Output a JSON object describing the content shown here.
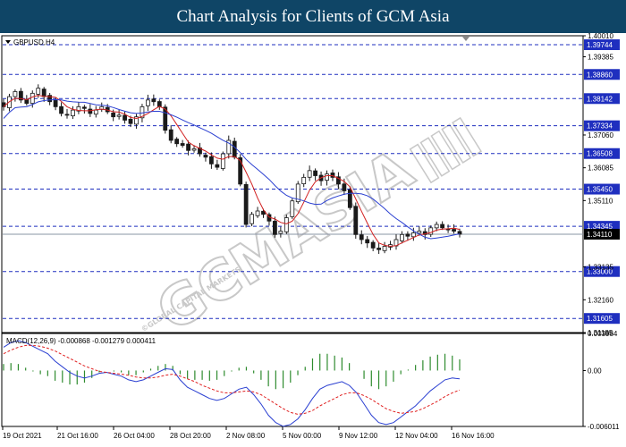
{
  "header": {
    "title": "Chart Analysis for Clients of GCM Asia"
  },
  "colors": {
    "title_bg": "#0f4566",
    "level_line": "#1f2fbf",
    "level_tag": "#1f2fbf",
    "ma_fast": "#d11f1f",
    "ma_slow": "#2a3fd1",
    "macd_hist": "#2e8b2e",
    "macd_main": "#2a3fd1",
    "macd_signal": "#e02020",
    "candle": "#1a1a1a",
    "watermark": "#c8c8c8"
  },
  "watermark": {
    "main": "GCMASIA",
    "sub": "©GLOBAL CAPITAL MARKETS",
    "logo": "GCMASIA LOGO"
  },
  "chart_data": {
    "type": "candlestick",
    "symbol": "GBPUSD,H4",
    "price_range": [
      1.31185,
      1.4001
    ],
    "price_ticks": [
      "1.40010",
      "1.39385",
      "1.37060",
      "1.36085",
      "1.35110",
      "1.33135",
      "1.32160",
      "1.31185"
    ],
    "current_price": "1.34110",
    "levels": [
      "1.39744",
      "1.38860",
      "1.38142",
      "1.37334",
      "1.36508",
      "1.35450",
      "1.34345",
      "1.33000",
      "1.31605"
    ],
    "x_labels": [
      "19 Oct 2021",
      "21 Oct 16:00",
      "26 Oct 04:00",
      "28 Oct 20:00",
      "2 Nov 08:00",
      "5 Nov 00:00",
      "9 Nov 12:00",
      "12 Nov 04:00",
      "16 Nov 16:00"
    ],
    "closes": [
      1.379,
      1.382,
      1.3835,
      1.381,
      1.38,
      1.383,
      1.3845,
      1.382,
      1.3805,
      1.379,
      1.377,
      1.3765,
      1.378,
      1.379,
      1.3785,
      1.377,
      1.378,
      1.379,
      1.3775,
      1.376,
      1.3765,
      1.375,
      1.374,
      1.376,
      1.379,
      1.381,
      1.3805,
      1.379,
      1.372,
      1.369,
      1.368,
      1.3675,
      1.366,
      1.3665,
      1.365,
      1.364,
      1.362,
      1.361,
      1.365,
      1.369,
      1.364,
      1.356,
      1.344,
      1.347,
      1.348,
      1.347,
      1.345,
      1.341,
      1.342,
      1.346,
      1.351,
      1.356,
      1.358,
      1.36,
      1.3585,
      1.357,
      1.359,
      1.358,
      1.356,
      1.354,
      1.349,
      1.341,
      1.3395,
      1.3385,
      1.337,
      1.3365,
      1.3375,
      1.338,
      1.3395,
      1.341,
      1.3405,
      1.3415,
      1.342,
      1.341,
      1.343,
      1.344,
      1.343,
      1.3425,
      1.342,
      1.3411
    ],
    "macd": {
      "label": "MACD(12,26,9) -0.000868 -0.001279 0.000411",
      "range": [
        -0.006011,
        0.003984
      ],
      "ticks": [
        "0.003984",
        "0.00",
        "-0.006011"
      ],
      "main": [
        0.0025,
        0.003,
        0.0032,
        0.003,
        0.0026,
        0.0022,
        0.0018,
        0.001,
        0.0004,
        -0.0002,
        -0.0006,
        -0.0008,
        -0.0006,
        -0.0003,
        -0.0002,
        -0.0004,
        -0.0006,
        -0.001,
        -0.0012,
        -0.001,
        -0.0006,
        -0.0002,
        0.0002,
        0.0001,
        -0.001,
        -0.0018,
        -0.0022,
        -0.0026,
        -0.003,
        -0.0032,
        -0.003,
        -0.0025,
        -0.002,
        -0.0018,
        -0.0026,
        -0.0036,
        -0.0048,
        -0.0056,
        -0.006,
        -0.0058,
        -0.0052,
        -0.0042,
        -0.003,
        -0.002,
        -0.0016,
        -0.0014,
        -0.0012,
        -0.0016,
        -0.0024,
        -0.0036,
        -0.0048,
        -0.0056,
        -0.0058,
        -0.0056,
        -0.005,
        -0.0044,
        -0.0038,
        -0.003,
        -0.0022,
        -0.0016,
        -0.001,
        -0.0008,
        -0.0009
      ],
      "signal": [
        0.0018,
        0.0022,
        0.0025,
        0.0027,
        0.0027,
        0.0026,
        0.0024,
        0.0021,
        0.0017,
        0.0013,
        0.0009,
        0.0005,
        0.0002,
        -0.0001,
        -0.0002,
        -0.0003,
        -0.0004,
        -0.0005,
        -0.0007,
        -0.0008,
        -0.0008,
        -0.0007,
        -0.0005,
        -0.0004,
        -0.0006,
        -0.0009,
        -0.0012,
        -0.0016,
        -0.0019,
        -0.0022,
        -0.0024,
        -0.0024,
        -0.0023,
        -0.0022,
        -0.0023,
        -0.0026,
        -0.0031,
        -0.0036,
        -0.0041,
        -0.0045,
        -0.0047,
        -0.0046,
        -0.0043,
        -0.0038,
        -0.0034,
        -0.003,
        -0.0026,
        -0.0024,
        -0.0024,
        -0.0027,
        -0.0031,
        -0.0036,
        -0.0041,
        -0.0044,
        -0.0046,
        -0.0045,
        -0.0044,
        -0.0041,
        -0.0037,
        -0.0033,
        -0.0028,
        -0.0024,
        -0.0021
      ]
    }
  }
}
